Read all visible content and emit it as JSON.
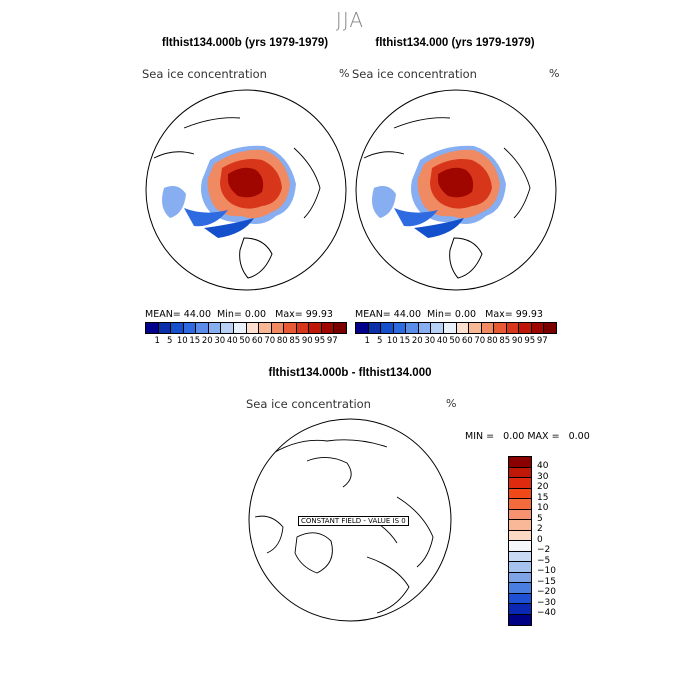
{
  "season": "JJA",
  "panel1": {
    "title": "flthist134.000b (yrs 1979-1979)",
    "variable": "Sea ice concentration",
    "units": "%",
    "mean_label": "MEAN=",
    "mean_value": "44.00",
    "min_label": "Min=",
    "min_value": "0.00",
    "max_label": "Max=",
    "max_value": "99.93"
  },
  "panel2": {
    "title": "flthist134.000 (yrs 1979-1979)",
    "variable": "Sea ice concentration",
    "units": "%",
    "mean_label": "MEAN=",
    "mean_value": "44.00",
    "min_label": "Min=",
    "min_value": "0.00",
    "max_label": "Max=",
    "max_value": "99.93"
  },
  "diff": {
    "title": "flthist134.000b - flthist134.000",
    "variable": "Sea ice concentration",
    "units": "%",
    "min_label": "MIN =",
    "min_value": "0.00",
    "max_label": "MAX =",
    "max_value": "0.00",
    "constant_field_text": "CONSTANT FIELD - VALUE IS 0"
  },
  "colorbar": {
    "ticks": [
      "1",
      "5",
      "10",
      "15",
      "20",
      "30",
      "40",
      "50",
      "60",
      "70",
      "80",
      "85",
      "90",
      "95",
      "97"
    ],
    "colors": [
      "#00008a",
      "#0a2fa8",
      "#1450cc",
      "#2e6ae0",
      "#5a8ce8",
      "#86aef0",
      "#b6d0f6",
      "#e8f0fa",
      "#fbe0d0",
      "#f8b896",
      "#f08a62",
      "#e85a36",
      "#d8361a",
      "#c01808",
      "#a00600",
      "#7a0000"
    ]
  },
  "diff_colorbar": {
    "labels": [
      "40",
      "30",
      "20",
      "15",
      "10",
      "5",
      "2",
      "0",
      "−2",
      "−5",
      "−10",
      "−15",
      "−20",
      "−30",
      "−40"
    ],
    "colors": [
      "#8a0000",
      "#c01808",
      "#e02a10",
      "#f04818",
      "#f36a3c",
      "#f79270",
      "#f9b898",
      "#fbd8c4",
      "#f4f6fa",
      "#c8daf4",
      "#a6c2ee",
      "#7ea4e6",
      "#4a7ee0",
      "#1e50d4",
      "#0a28b4",
      "#000084"
    ]
  },
  "chart_data": {
    "type": "map",
    "title": "JJA",
    "panels": [
      {
        "name": "flthist134.000b (yrs 1979-1979)",
        "variable": "Sea ice concentration",
        "units": "%",
        "mean": 44.0,
        "min": 0.0,
        "max": 99.93
      },
      {
        "name": "flthist134.000 (yrs 1979-1979)",
        "variable": "Sea ice concentration",
        "units": "%",
        "mean": 44.0,
        "min": 0.0,
        "max": 99.93
      },
      {
        "name": "flthist134.000b - flthist134.000",
        "variable": "Sea ice concentration",
        "units": "%",
        "min": 0.0,
        "max": 0.0
      }
    ],
    "contour_levels": [
      1,
      5,
      10,
      15,
      20,
      30,
      40,
      50,
      60,
      70,
      80,
      85,
      90,
      95,
      97
    ],
    "diff_levels": [
      40,
      30,
      20,
      15,
      10,
      5,
      2,
      0,
      -2,
      -5,
      -10,
      -15,
      -20,
      -30,
      -40
    ]
  }
}
